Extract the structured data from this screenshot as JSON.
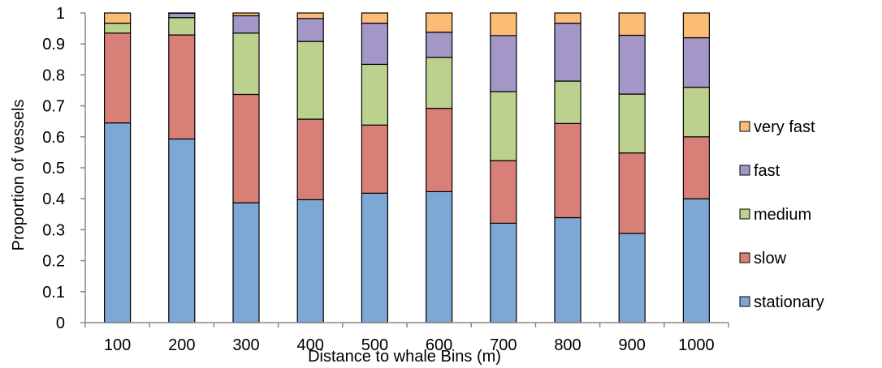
{
  "chart_data": {
    "type": "bar",
    "stacked": true,
    "xlabel": "Distance to whale Bins (m)",
    "ylabel": "Proportion of vessels",
    "ylim": [
      0,
      1
    ],
    "yticks": [
      "0",
      "0.1",
      "0.2",
      "0.3",
      "0.4",
      "0.5",
      "0.6",
      "0.7",
      "0.8",
      "0.9",
      "1"
    ],
    "categories": [
      "100",
      "200",
      "300",
      "400",
      "500",
      "600",
      "700",
      "800",
      "900",
      "1000"
    ],
    "grid": false,
    "legend_position": "right",
    "series": [
      {
        "name": "stationary",
        "color": "#7ea8d4",
        "values": [
          0.645,
          0.593,
          0.387,
          0.397,
          0.418,
          0.423,
          0.321,
          0.339,
          0.288,
          0.4
        ]
      },
      {
        "name": "slow",
        "color": "#d88078",
        "values": [
          0.29,
          0.336,
          0.35,
          0.26,
          0.22,
          0.269,
          0.202,
          0.304,
          0.26,
          0.2
        ]
      },
      {
        "name": "medium",
        "color": "#bdd18e",
        "values": [
          0.032,
          0.056,
          0.198,
          0.251,
          0.196,
          0.165,
          0.223,
          0.137,
          0.19,
          0.16
        ]
      },
      {
        "name": "fast",
        "color": "#a596c8",
        "values": [
          0.0,
          0.014,
          0.056,
          0.074,
          0.133,
          0.081,
          0.181,
          0.187,
          0.19,
          0.16
        ]
      },
      {
        "name": "very fast",
        "color": "#fbbc74",
        "values": [
          0.033,
          0.001,
          0.009,
          0.018,
          0.033,
          0.062,
          0.073,
          0.033,
          0.072,
          0.08
        ]
      }
    ]
  }
}
